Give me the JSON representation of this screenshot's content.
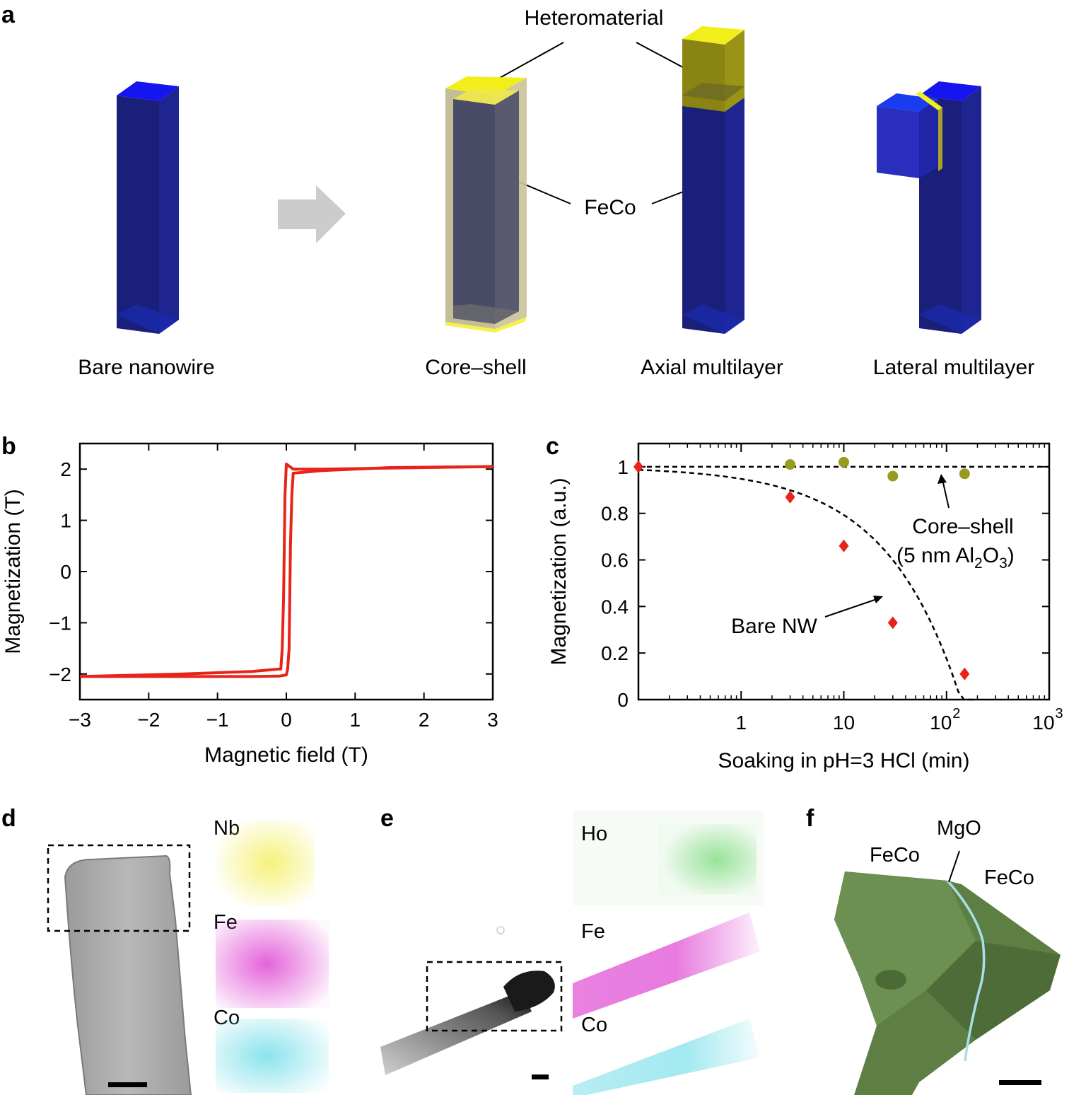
{
  "panel_a": {
    "label": "a",
    "heteromaterial": "Heteromaterial",
    "feco": "FeCo",
    "captions": [
      "Bare nanowire",
      "Core–shell",
      "Axial multilayer",
      "Lateral multilayer"
    ],
    "colors": {
      "wire": "#1a1f7a",
      "wire_top": "#1515f0",
      "hetero": "#f2ee1a",
      "shell": "#b8b17a",
      "arrow": "#cccccc"
    }
  },
  "panel_d": {
    "label": "d",
    "elements": [
      "Nb",
      "Fe",
      "Co"
    ]
  },
  "panel_e": {
    "label": "e",
    "elements": [
      "Ho",
      "Fe",
      "Co"
    ]
  },
  "panel_f": {
    "label": "f",
    "labels": [
      "FeCo",
      "MgO",
      "FeCo"
    ],
    "color": "#5d7f44"
  },
  "chart_data": [
    {
      "panel": "b",
      "type": "line",
      "xlabel": "Magnetic field (T)",
      "ylabel": "Magnetization (T)",
      "xlim": [
        -3,
        3
      ],
      "ylim": [
        -2.5,
        2.5
      ],
      "xticks": [
        -3,
        -2,
        -1,
        0,
        1,
        2,
        3
      ],
      "xtick_labels": [
        "−3",
        "−2",
        "−1",
        "0",
        "1",
        "2",
        "3"
      ],
      "yticks": [
        -2,
        -1,
        0,
        1,
        2
      ],
      "ytick_labels": [
        "−2",
        "−1",
        "0",
        "1",
        "2"
      ],
      "color": "#e8231a",
      "series": [
        {
          "x": [
            3,
            1.5,
            0.5,
            0.1,
            0.08,
            0.06,
            0.05,
            0.04,
            0.02,
            0.0,
            -0.1,
            -0.5,
            -1.5,
            -3
          ],
          "y": [
            2.05,
            2.03,
            1.97,
            1.92,
            1.5,
            0.5,
            -0.5,
            -1.5,
            -1.9,
            -2.02,
            -2.04,
            -2.05,
            -2.05,
            -2.05
          ]
        },
        {
          "x": [
            -3,
            -1.5,
            -0.5,
            -0.08,
            -0.06,
            -0.04,
            -0.03,
            -0.02,
            0.0,
            0.1,
            0.5,
            1.5,
            3
          ],
          "y": [
            -2.05,
            -2.0,
            -1.95,
            -1.9,
            -1.5,
            -0.5,
            0.5,
            1.5,
            2.1,
            2.0,
            2.0,
            2.02,
            2.05
          ]
        }
      ]
    },
    {
      "panel": "c",
      "type": "scatter",
      "x_scale": "log",
      "xlabel": "Soaking in pH=3 HCl (min)",
      "ylabel": "Magnetization (a.u.)",
      "xlim": [
        0.1,
        1000
      ],
      "ylim": [
        0,
        1.1
      ],
      "xtick_labels": [
        "1",
        "10",
        "10",
        "10"
      ],
      "xtick_exponents": [
        "",
        "",
        "2",
        "3"
      ],
      "ytick_labels": [
        "0",
        "0.2",
        "0.4",
        "0.6",
        "0.8",
        "1"
      ],
      "series": [
        {
          "name": "Bare NW",
          "marker": "diamond",
          "color": "#e8231a",
          "x": [
            0.1,
            3,
            10,
            30,
            150
          ],
          "y": [
            1.0,
            0.87,
            0.66,
            0.33,
            0.11
          ]
        },
        {
          "name": "Core–shell (5 nm Al2O3)",
          "marker": "circle",
          "color": "#9a9a1e",
          "x": [
            3,
            10,
            30,
            150
          ],
          "y": [
            1.01,
            1.02,
            0.96,
            0.97
          ]
        }
      ],
      "fit_lines": [
        {
          "style": "dashed",
          "x": [
            0.1,
            1000
          ],
          "y": [
            1.0,
            1.0
          ]
        },
        {
          "style": "dashed",
          "x": [
            0.1,
            1,
            3,
            10,
            30,
            100,
            190
          ],
          "y": [
            1.0,
            0.95,
            0.86,
            0.7,
            0.45,
            0.18,
            0.0
          ]
        }
      ],
      "annotations": {
        "core_shell_1": "Core–shell",
        "core_shell_2a": "(5 nm Al",
        "core_shell_2b": "2",
        "core_shell_2c": "O",
        "core_shell_2d": "3",
        "core_shell_2e": ")",
        "bare": "Bare NW"
      }
    }
  ]
}
